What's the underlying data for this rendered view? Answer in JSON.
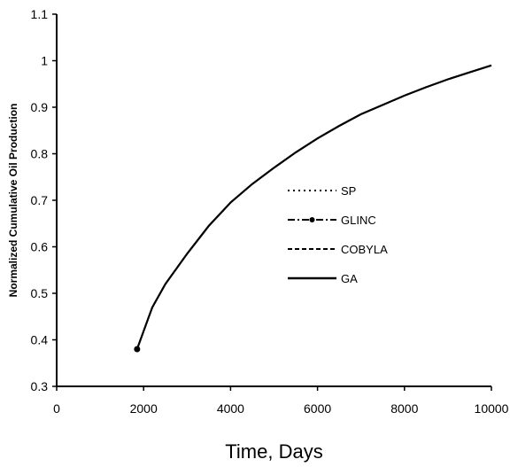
{
  "chart_data": {
    "type": "line",
    "title": "",
    "xlabel": "Time, Days",
    "ylabel": "Normalized Cumulative Oil Production",
    "xlim": [
      0,
      10000
    ],
    "ylim": [
      0.3,
      1.1
    ],
    "xticks": [
      0,
      2000,
      4000,
      6000,
      8000,
      10000
    ],
    "yticks": [
      0.3,
      0.4,
      0.5,
      0.6,
      0.7,
      0.8,
      0.9,
      1.0,
      1.1
    ],
    "xtick_labels": [
      "0",
      "2000",
      "4000",
      "6000",
      "8000",
      "10000"
    ],
    "ytick_labels": [
      "0.3",
      "0.4",
      "0.5",
      "0.6",
      "0.7",
      "0.8",
      "0.9",
      "1",
      "1.1"
    ],
    "grid": false,
    "legend_position": "center-right",
    "series": [
      {
        "name": "SP",
        "style": "dotted",
        "color": "#000000",
        "x": [
          1850,
          2200,
          2500,
          3000,
          3500,
          4000,
          4500,
          5000,
          5500,
          6000,
          6500,
          7000,
          7500,
          8000,
          8500,
          9000,
          9500,
          10000
        ],
        "y": [
          0.38,
          0.47,
          0.52,
          0.585,
          0.645,
          0.695,
          0.735,
          0.77,
          0.803,
          0.833,
          0.86,
          0.885,
          0.905,
          0.925,
          0.943,
          0.96,
          0.975,
          0.99
        ]
      },
      {
        "name": "GLINC",
        "style": "dash-dot",
        "color": "#000000",
        "x": [
          1850,
          2200,
          2500,
          3000,
          3500,
          4000,
          4500,
          5000,
          5500,
          6000,
          6500,
          7000,
          7500,
          8000,
          8500,
          9000,
          9500,
          10000
        ],
        "y": [
          0.38,
          0.47,
          0.52,
          0.585,
          0.645,
          0.695,
          0.735,
          0.77,
          0.803,
          0.833,
          0.86,
          0.885,
          0.905,
          0.925,
          0.943,
          0.96,
          0.975,
          0.99
        ]
      },
      {
        "name": "COBYLA",
        "style": "dashed",
        "color": "#000000",
        "x": [
          1850,
          2200,
          2500,
          3000,
          3500,
          4000,
          4500,
          5000,
          5500,
          6000,
          6500,
          7000,
          7500,
          8000,
          8500,
          9000,
          9500,
          10000
        ],
        "y": [
          0.38,
          0.47,
          0.52,
          0.585,
          0.645,
          0.695,
          0.735,
          0.77,
          0.803,
          0.833,
          0.86,
          0.885,
          0.905,
          0.925,
          0.943,
          0.96,
          0.975,
          0.99
        ]
      },
      {
        "name": "GA",
        "style": "solid",
        "color": "#000000",
        "x": [
          1850,
          2200,
          2500,
          3000,
          3500,
          4000,
          4500,
          5000,
          5500,
          6000,
          6500,
          7000,
          7500,
          8000,
          8500,
          9000,
          9500,
          10000
        ],
        "y": [
          0.38,
          0.47,
          0.52,
          0.585,
          0.645,
          0.695,
          0.735,
          0.77,
          0.803,
          0.833,
          0.86,
          0.885,
          0.905,
          0.925,
          0.943,
          0.96,
          0.975,
          0.99
        ]
      }
    ]
  }
}
